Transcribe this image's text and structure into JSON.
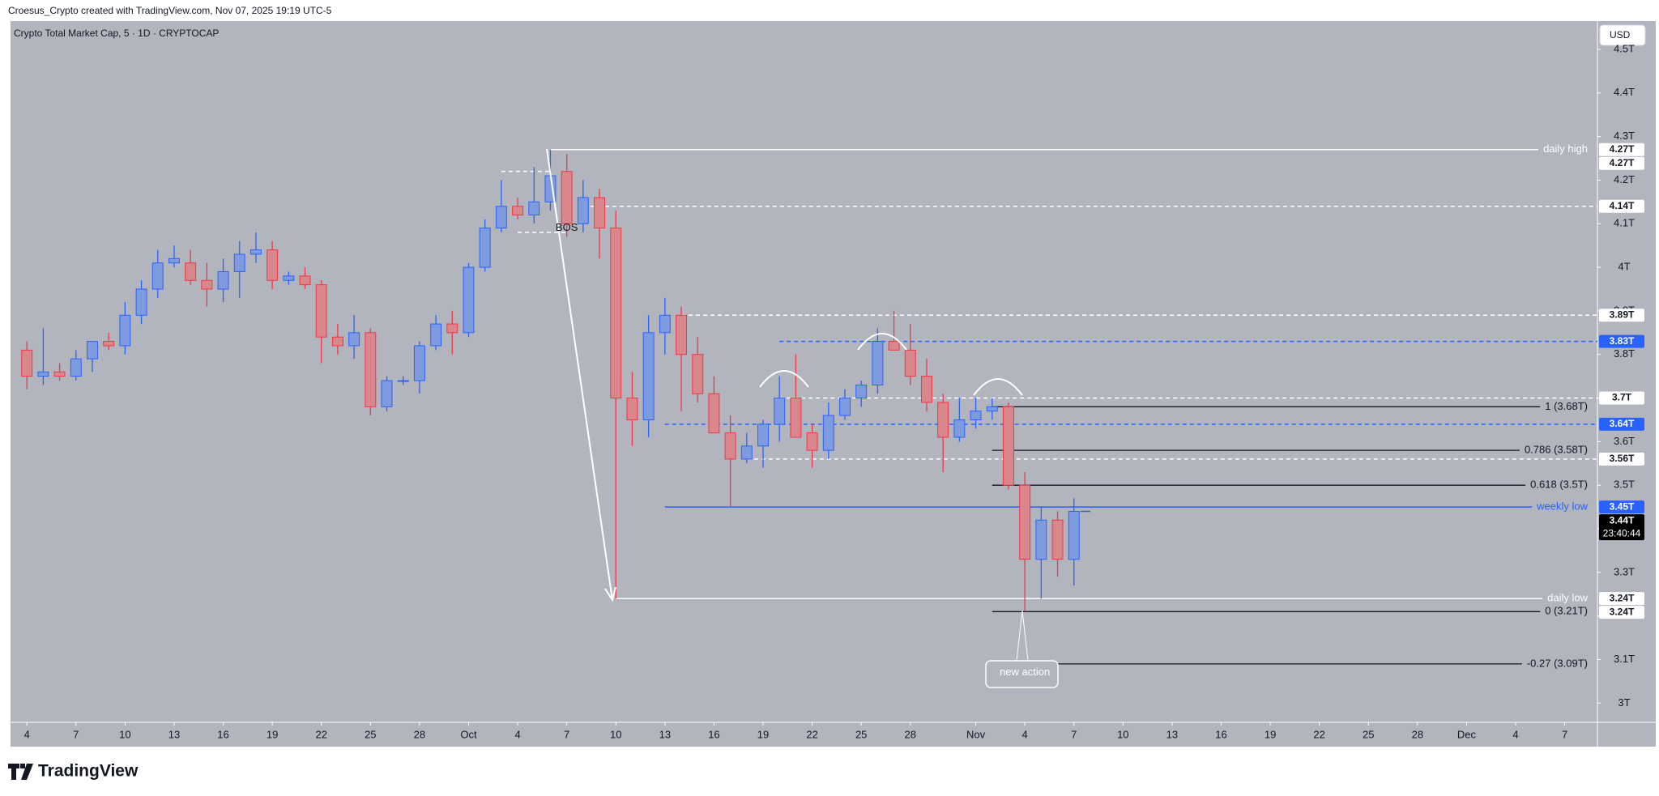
{
  "header": "Croesus_Crypto created with TradingView.com, Nov 07, 2025 19:19 UTC-5",
  "brand": "TradingView",
  "currency_button": "USD",
  "chart_data": {
    "type": "candlestick",
    "title": "Crypto Total Market Cap, 5 · 1D · CRYPTOCAP",
    "x": [
      "2025-09-04",
      "2025-09-05",
      "2025-09-06",
      "2025-09-07",
      "2025-09-08",
      "2025-09-09",
      "2025-09-10",
      "2025-09-11",
      "2025-09-12",
      "2025-09-13",
      "2025-09-14",
      "2025-09-15",
      "2025-09-16",
      "2025-09-17",
      "2025-09-18",
      "2025-09-19",
      "2025-09-20",
      "2025-09-21",
      "2025-09-22",
      "2025-09-23",
      "2025-09-24",
      "2025-09-25",
      "2025-09-26",
      "2025-09-27",
      "2025-09-28",
      "2025-09-29",
      "2025-09-30",
      "2025-10-01",
      "2025-10-02",
      "2025-10-03",
      "2025-10-04",
      "2025-10-05",
      "2025-10-06",
      "2025-10-07",
      "2025-10-08",
      "2025-10-09",
      "2025-10-10",
      "2025-10-11",
      "2025-10-12",
      "2025-10-13",
      "2025-10-14",
      "2025-10-15",
      "2025-10-16",
      "2025-10-17",
      "2025-10-18",
      "2025-10-19",
      "2025-10-20",
      "2025-10-21",
      "2025-10-22",
      "2025-10-23",
      "2025-10-24",
      "2025-10-25",
      "2025-10-26",
      "2025-10-27",
      "2025-10-28",
      "2025-10-29",
      "2025-10-30",
      "2025-10-31",
      "2025-11-01",
      "2025-11-02",
      "2025-11-03",
      "2025-11-04",
      "2025-11-05",
      "2025-11-06",
      "2025-11-07"
    ],
    "open": [
      3.81,
      3.75,
      3.76,
      3.75,
      3.79,
      3.83,
      3.82,
      3.89,
      3.95,
      4.01,
      4.01,
      3.97,
      3.95,
      3.99,
      4.03,
      4.04,
      3.97,
      3.98,
      3.96,
      3.84,
      3.82,
      3.85,
      3.68,
      3.74,
      3.74,
      3.82,
      3.87,
      3.85,
      4.0,
      4.09,
      4.14,
      4.12,
      4.15,
      4.22,
      4.1,
      4.16,
      4.09,
      3.7,
      3.65,
      3.85,
      3.89,
      3.8,
      3.71,
      3.62,
      3.56,
      3.59,
      3.64,
      3.7,
      3.62,
      3.58,
      3.66,
      3.7,
      3.73,
      3.83,
      3.81,
      3.75,
      3.69,
      3.61,
      3.65,
      3.67,
      3.68,
      3.5,
      3.33,
      3.42,
      3.33
    ],
    "high": [
      3.83,
      3.86,
      3.78,
      3.81,
      3.83,
      3.85,
      3.92,
      3.97,
      4.04,
      4.05,
      4.04,
      4.01,
      4.02,
      4.06,
      4.08,
      4.06,
      3.99,
      4.0,
      3.97,
      3.87,
      3.89,
      3.86,
      3.75,
      3.75,
      3.83,
      3.89,
      3.9,
      4.01,
      4.11,
      4.2,
      4.16,
      4.23,
      4.27,
      4.26,
      4.2,
      4.18,
      4.13,
      3.76,
      3.89,
      3.93,
      3.91,
      3.84,
      3.75,
      3.66,
      3.62,
      3.65,
      3.75,
      3.8,
      3.64,
      3.69,
      3.72,
      3.74,
      3.86,
      3.9,
      3.87,
      3.79,
      3.71,
      3.7,
      3.7,
      3.7,
      3.69,
      3.53,
      3.45,
      3.44,
      3.47
    ],
    "low": [
      3.72,
      3.73,
      3.74,
      3.74,
      3.76,
      3.81,
      3.8,
      3.87,
      3.93,
      4.0,
      3.96,
      3.91,
      3.92,
      3.93,
      4.01,
      3.95,
      3.96,
      3.95,
      3.78,
      3.8,
      3.79,
      3.66,
      3.67,
      3.73,
      3.71,
      3.81,
      3.8,
      3.84,
      3.99,
      4.08,
      4.11,
      4.1,
      4.13,
      4.07,
      4.08,
      4.02,
      3.24,
      3.59,
      3.61,
      3.8,
      3.67,
      3.69,
      3.62,
      3.45,
      3.55,
      3.54,
      3.6,
      3.61,
      3.54,
      3.56,
      3.65,
      3.68,
      3.71,
      3.81,
      3.73,
      3.67,
      3.53,
      3.6,
      3.63,
      3.65,
      3.49,
      3.21,
      3.24,
      3.29,
      3.27
    ],
    "close": [
      3.75,
      3.76,
      3.75,
      3.79,
      3.83,
      3.82,
      3.89,
      3.95,
      4.01,
      4.02,
      3.97,
      3.95,
      3.99,
      4.03,
      4.04,
      3.97,
      3.98,
      3.96,
      3.84,
      3.82,
      3.85,
      3.68,
      3.74,
      3.74,
      3.82,
      3.87,
      3.85,
      4.0,
      4.09,
      4.14,
      4.12,
      4.15,
      4.21,
      4.1,
      4.16,
      4.09,
      3.7,
      3.65,
      3.85,
      3.89,
      3.8,
      3.71,
      3.62,
      3.56,
      3.59,
      3.64,
      3.7,
      3.61,
      3.58,
      3.66,
      3.7,
      3.73,
      3.83,
      3.81,
      3.75,
      3.69,
      3.61,
      3.65,
      3.67,
      3.68,
      3.5,
      3.33,
      3.42,
      3.33,
      3.44
    ],
    "up_color": "#7f9be0",
    "up_border": "#2962ff",
    "down_color": "#d9868c",
    "down_border": "#f23645",
    "background": "#b2b5be",
    "xlim": [
      "2025-09-03",
      "2025-12-09"
    ],
    "xticks": [
      {
        "value": "2025-09-04",
        "label": "4"
      },
      {
        "value": "2025-09-07",
        "label": "7"
      },
      {
        "value": "2025-09-10",
        "label": "10"
      },
      {
        "value": "2025-09-13",
        "label": "13"
      },
      {
        "value": "2025-09-16",
        "label": "16"
      },
      {
        "value": "2025-09-19",
        "label": "19"
      },
      {
        "value": "2025-09-22",
        "label": "22"
      },
      {
        "value": "2025-09-25",
        "label": "25"
      },
      {
        "value": "2025-09-28",
        "label": "28"
      },
      {
        "value": "2025-10-01",
        "label": "Oct"
      },
      {
        "value": "2025-10-04",
        "label": "4"
      },
      {
        "value": "2025-10-07",
        "label": "7"
      },
      {
        "value": "2025-10-10",
        "label": "10"
      },
      {
        "value": "2025-10-13",
        "label": "13"
      },
      {
        "value": "2025-10-16",
        "label": "16"
      },
      {
        "value": "2025-10-19",
        "label": "19"
      },
      {
        "value": "2025-10-22",
        "label": "22"
      },
      {
        "value": "2025-10-25",
        "label": "25"
      },
      {
        "value": "2025-10-28",
        "label": "28"
      },
      {
        "value": "2025-11-01",
        "label": "Nov"
      },
      {
        "value": "2025-11-04",
        "label": "4"
      },
      {
        "value": "2025-11-07",
        "label": "7"
      },
      {
        "value": "2025-11-10",
        "label": "10"
      },
      {
        "value": "2025-11-13",
        "label": "13"
      },
      {
        "value": "2025-11-16",
        "label": "16"
      },
      {
        "value": "2025-11-19",
        "label": "19"
      },
      {
        "value": "2025-11-22",
        "label": "22"
      },
      {
        "value": "2025-11-25",
        "label": "25"
      },
      {
        "value": "2025-11-28",
        "label": "28"
      },
      {
        "value": "2025-12-01",
        "label": "Dec"
      },
      {
        "value": "2025-12-04",
        "label": "4"
      },
      {
        "value": "2025-12-07",
        "label": "7"
      }
    ],
    "ylim": [
      2.956,
      4.565
    ],
    "yticks": [
      {
        "value": 3,
        "label": "3T"
      },
      {
        "value": 3.1,
        "label": "3.1T"
      },
      {
        "value": 3.2,
        "label": "3.2T"
      },
      {
        "value": 3.3,
        "label": "3.3T"
      },
      {
        "value": 3.4,
        "label": "3.4T"
      },
      {
        "value": 3.5,
        "label": "3.5T"
      },
      {
        "value": 3.6,
        "label": "3.6T"
      },
      {
        "value": 3.7,
        "label": "3.7T"
      },
      {
        "value": 3.8,
        "label": "3.8T"
      },
      {
        "value": 3.9,
        "label": "3.9T"
      },
      {
        "value": 4,
        "label": "4T"
      },
      {
        "value": 4.1,
        "label": "4.1T"
      },
      {
        "value": 4.2,
        "label": "4.2T"
      },
      {
        "value": 4.3,
        "label": "4.3T"
      },
      {
        "value": 4.4,
        "label": "4.4T"
      },
      {
        "value": 4.5,
        "label": "4.5T"
      }
    ],
    "levels": [
      {
        "value": 4.27,
        "from": "2025-10-06",
        "color": "#ffffff",
        "dashed": false,
        "label": "daily high"
      },
      {
        "value": 4.14,
        "from": "2025-10-08",
        "color": "#ffffff",
        "dashed": true
      },
      {
        "value": 4.22,
        "from": "2025-10-03",
        "to": "2025-10-06",
        "color": "#ffffff",
        "dashed": true
      },
      {
        "value": 4.08,
        "from": "2025-10-04",
        "to": "2025-10-07",
        "color": "#ffffff",
        "dashed": true
      },
      {
        "value": 3.89,
        "from": "2025-10-14",
        "color": "#ffffff",
        "dashed": true
      },
      {
        "value": 3.83,
        "from": "2025-10-20",
        "color": "#2962ff",
        "dashed": true
      },
      {
        "value": 3.7,
        "from": "2025-10-20",
        "color": "#ffffff",
        "dashed": true
      },
      {
        "value": 3.64,
        "from": "2025-10-13",
        "color": "#2962ff",
        "dashed": true
      },
      {
        "value": 3.56,
        "from": "2025-10-18",
        "color": "#ffffff",
        "dashed": true
      },
      {
        "value": 3.45,
        "from": "2025-10-13",
        "color": "#2962ff",
        "dashed": false,
        "label": "weekly low"
      },
      {
        "value": 3.24,
        "from": "2025-10-10",
        "color": "#ffffff",
        "dashed": false,
        "label": "daily low"
      },
      {
        "value": 3.68,
        "from": "2025-11-02",
        "color": "#131722",
        "dashed": false,
        "label": "1 (3.68T)"
      },
      {
        "value": 3.58,
        "from": "2025-11-02",
        "color": "#131722",
        "dashed": false,
        "label": "0.786 (3.58T)"
      },
      {
        "value": 3.5,
        "from": "2025-11-02",
        "color": "#131722",
        "dashed": false,
        "label": "0.618 (3.5T)"
      },
      {
        "value": 3.21,
        "from": "2025-11-02",
        "color": "#131722",
        "dashed": false,
        "label": "0 (3.21T)"
      },
      {
        "value": 3.09,
        "from": "2025-11-02",
        "color": "#131722",
        "dashed": false,
        "label": "-0.27 (3.09T)"
      }
    ],
    "price_tags": [
      {
        "value": 4.27,
        "label": "4.27T",
        "color": "#ffffff"
      },
      {
        "value": 4.27,
        "label": "4.27T",
        "color": "#ffffff"
      },
      {
        "value": 4.14,
        "label": "4.14T",
        "color": "#ffffff"
      },
      {
        "value": 3.89,
        "label": "3.89T",
        "color": "#ffffff"
      },
      {
        "value": 3.83,
        "label": "3.83T",
        "color": "#2962ff"
      },
      {
        "value": 3.7,
        "label": "3.7T",
        "color": "#ffffff"
      },
      {
        "value": 3.64,
        "label": "3.64T",
        "color": "#2962ff"
      },
      {
        "value": 3.56,
        "label": "3.56T",
        "color": "#ffffff"
      },
      {
        "value": 3.45,
        "label": "3.45T",
        "color": "#2962ff"
      },
      {
        "value": 3.44,
        "label": "3.44T",
        "color": "#000000",
        "countdown": "23:40:44"
      },
      {
        "value": 3.24,
        "label": "3.24T",
        "color": "#ffffff"
      },
      {
        "value": 3.24,
        "label": "3.24T",
        "color": "#ffffff"
      }
    ],
    "annotations": [
      {
        "text": "BOS",
        "x": "2025-10-07",
        "value": 4.09
      },
      {
        "text": "new action",
        "x": "2025-11-04",
        "value": 3.07
      }
    ]
  }
}
